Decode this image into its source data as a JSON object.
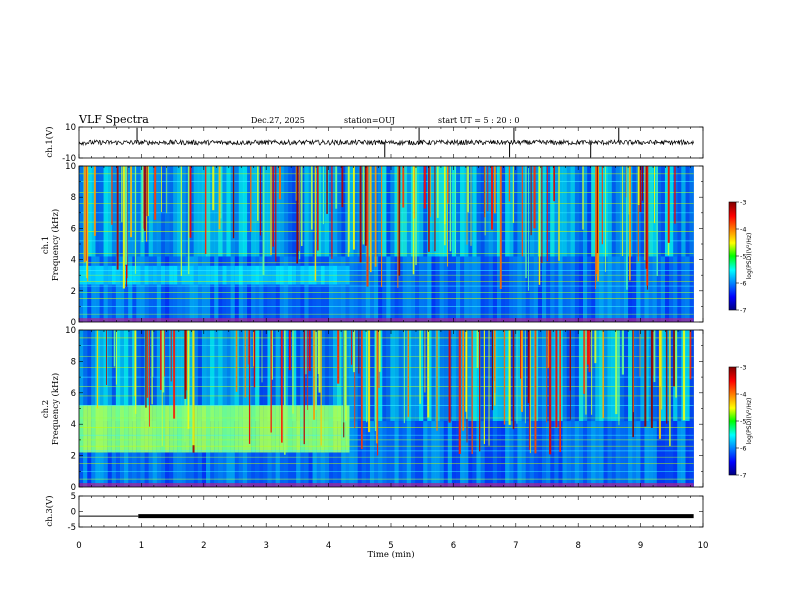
{
  "header": {
    "title": "VLF Spectra",
    "date": "Dec.27, 2025",
    "station": "station=OUJ",
    "start": "start UT =  5 : 20 : 0"
  },
  "chart_data": {
    "type": "spectrogram",
    "xlabel": "Time (min)",
    "xlim": [
      0,
      10
    ],
    "x_ticks": [
      "0",
      "1",
      "2",
      "3",
      "4",
      "5",
      "6",
      "7",
      "8",
      "9",
      "10"
    ],
    "data_end_min": 9.85,
    "panels": [
      {
        "name": "ch1-waveform",
        "type": "line",
        "ylabel": "ch.1(V)",
        "ylim": [
          -10,
          10
        ],
        "y_ticks": [
          "10",
          "-10"
        ],
        "baseline": 0,
        "spikes_min": [
          0.93,
          4.9,
          5.45,
          6.9,
          6.97,
          8.2,
          8.65
        ]
      },
      {
        "name": "ch1-spectrogram",
        "type": "heatmap",
        "ylabel": "ch.1\nFrequency (kHz)",
        "ylim": [
          0,
          10
        ],
        "y_ticks": [
          "0",
          "2",
          "4",
          "6",
          "8",
          "10"
        ],
        "colorbar": {
          "range": [
            -7,
            -3
          ],
          "ticks": [
            "-3",
            "-4",
            "-5",
            "-6",
            "-7"
          ],
          "label": "log(PSD)(V²/Hz)"
        }
      },
      {
        "name": "ch2-spectrogram",
        "type": "heatmap",
        "ylabel": "ch.2\nFrequency (kHz)",
        "ylim": [
          0,
          10
        ],
        "y_ticks": [
          "0",
          "2",
          "4",
          "6",
          "8",
          "10"
        ],
        "enhanced_band_khz": [
          2.2,
          5.2
        ],
        "enhanced_until_min": 4.3,
        "colorbar": {
          "range": [
            -7,
            -3
          ],
          "ticks": [
            "-3",
            "-4",
            "-5",
            "-6",
            "-7"
          ],
          "label": "log(PSD)(V²/Hz)"
        }
      },
      {
        "name": "ch3-waveform",
        "type": "line",
        "ylabel": "ch.3(V)",
        "ylim": [
          -5,
          5
        ],
        "y_ticks": [
          "5",
          "0",
          "-5"
        ],
        "baseline": -1.5,
        "step_at_min": 0.95
      }
    ]
  }
}
